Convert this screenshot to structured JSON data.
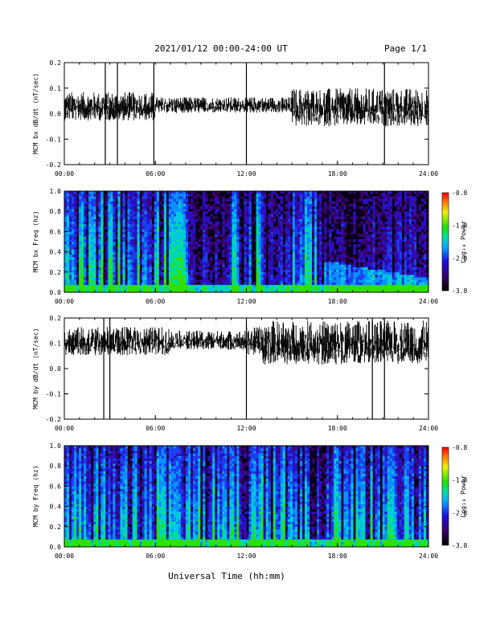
{
  "header": {
    "title": "2021/01/12  00:00-24:00 UT",
    "page": "Page 1/1"
  },
  "xlabel": "Universal Time (hh:mm)",
  "chart_data": [
    {
      "type": "line",
      "ylabel": "MCM bx dB/dt (nT/sec)",
      "ylim": [
        -0.2,
        0.2
      ],
      "yticks": [
        "-0.2",
        "-0.1",
        "0.0",
        "0.1",
        "0.2"
      ],
      "xticks": [
        "00:00",
        "06:00",
        "12:00",
        "18:00",
        "24:00"
      ],
      "xlim": [
        "00:00",
        "24:00"
      ],
      "baseline": 0.04,
      "spikes_hours": [
        2.7,
        3.5,
        5.9,
        12.0,
        21.1
      ]
    },
    {
      "type": "heatmap",
      "ylabel": "MCM bx Freq (hz)",
      "ylim": [
        0.0,
        1.0
      ],
      "yticks": [
        "0.0",
        "0.2",
        "0.4",
        "0.6",
        "0.8",
        "1.0"
      ],
      "xticks": [
        "00:00",
        "06:00",
        "12:00",
        "18:00",
        "24:00"
      ],
      "colorbar": {
        "label": "Log₁₀ Power",
        "ticks": [
          "-0.8",
          "-1.8",
          "-2.8",
          "-3.8"
        ],
        "range": [
          -3.8,
          -0.8
        ]
      }
    },
    {
      "type": "line",
      "ylabel": "MCM by dB/dt (nT/sec)",
      "ylim": [
        -0.2,
        0.2
      ],
      "yticks": [
        "-0.2",
        "-0.1",
        "0.0",
        "0.1",
        "0.2"
      ],
      "xticks": [
        "00:00",
        "06:00",
        "12:00",
        "18:00",
        "24:00"
      ],
      "xlim": [
        "00:00",
        "24:00"
      ],
      "baseline": 0.12,
      "spikes_hours": [
        2.6,
        3.0,
        12.0,
        20.3,
        21.1
      ]
    },
    {
      "type": "heatmap",
      "ylabel": "MCM by Freq (hz)",
      "ylim": [
        0.0,
        1.0
      ],
      "yticks": [
        "0.0",
        "0.2",
        "0.4",
        "0.6",
        "0.8",
        "1.0"
      ],
      "xticks": [
        "00:00",
        "06:00",
        "12:00",
        "18:00",
        "24:00"
      ],
      "colorbar": {
        "label": "Log₁₀ Power",
        "ticks": [
          "-0.8",
          "-1.8",
          "-2.8",
          "-3.8"
        ],
        "range": [
          -3.8,
          -0.8
        ]
      }
    }
  ]
}
